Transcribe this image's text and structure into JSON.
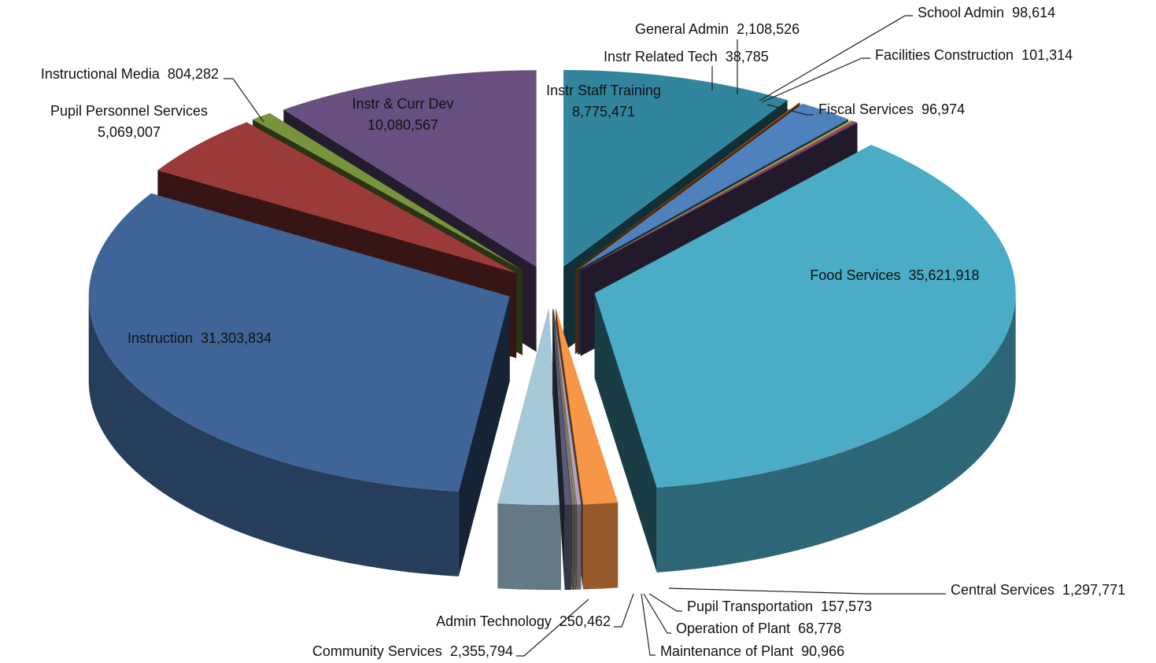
{
  "chart_data": {
    "type": "pie",
    "categories": [
      "Instr Staff Training",
      "Instr Related Tech",
      "General Admin",
      "School Admin",
      "Facilities Construction",
      "Fiscal Services",
      "Food Services",
      "Central Services",
      "Pupil Transportation",
      "Operation of Plant",
      "Maintenance of Plant",
      "Admin Technology",
      "Community Services",
      "Instruction",
      "Pupil Personnel Services",
      "Instructional Media",
      "Instr & Curr Dev"
    ],
    "values": [
      8775471,
      38785,
      2108526,
      98614,
      101314,
      96974,
      35621918,
      1297771,
      157573,
      68778,
      90966,
      250462,
      2355794,
      31303834,
      5069007,
      804282,
      10080567
    ],
    "value_labels": [
      "8,775,471",
      "38,785",
      "2,108,526",
      "98,614",
      "101,314",
      "96,974",
      "35,621,918",
      "1,297,771",
      "157,573",
      "68,778",
      "90,966",
      "250,462",
      "2,355,794",
      "31,303,834",
      "5,069,007",
      "804,282",
      "10,080,567"
    ],
    "colors": [
      "#31859c",
      "#e46c0a",
      "#4f81bd",
      "#9bbb59",
      "#c0504d",
      "#604a7b",
      "#4bacc6",
      "#f79646",
      "#b3a2c7",
      "#8c8c5a",
      "#7f7f7f",
      "#5a5a78",
      "#a6c9da",
      "#3f6598",
      "#9a3b3a",
      "#77933c",
      "#67507f"
    ]
  }
}
